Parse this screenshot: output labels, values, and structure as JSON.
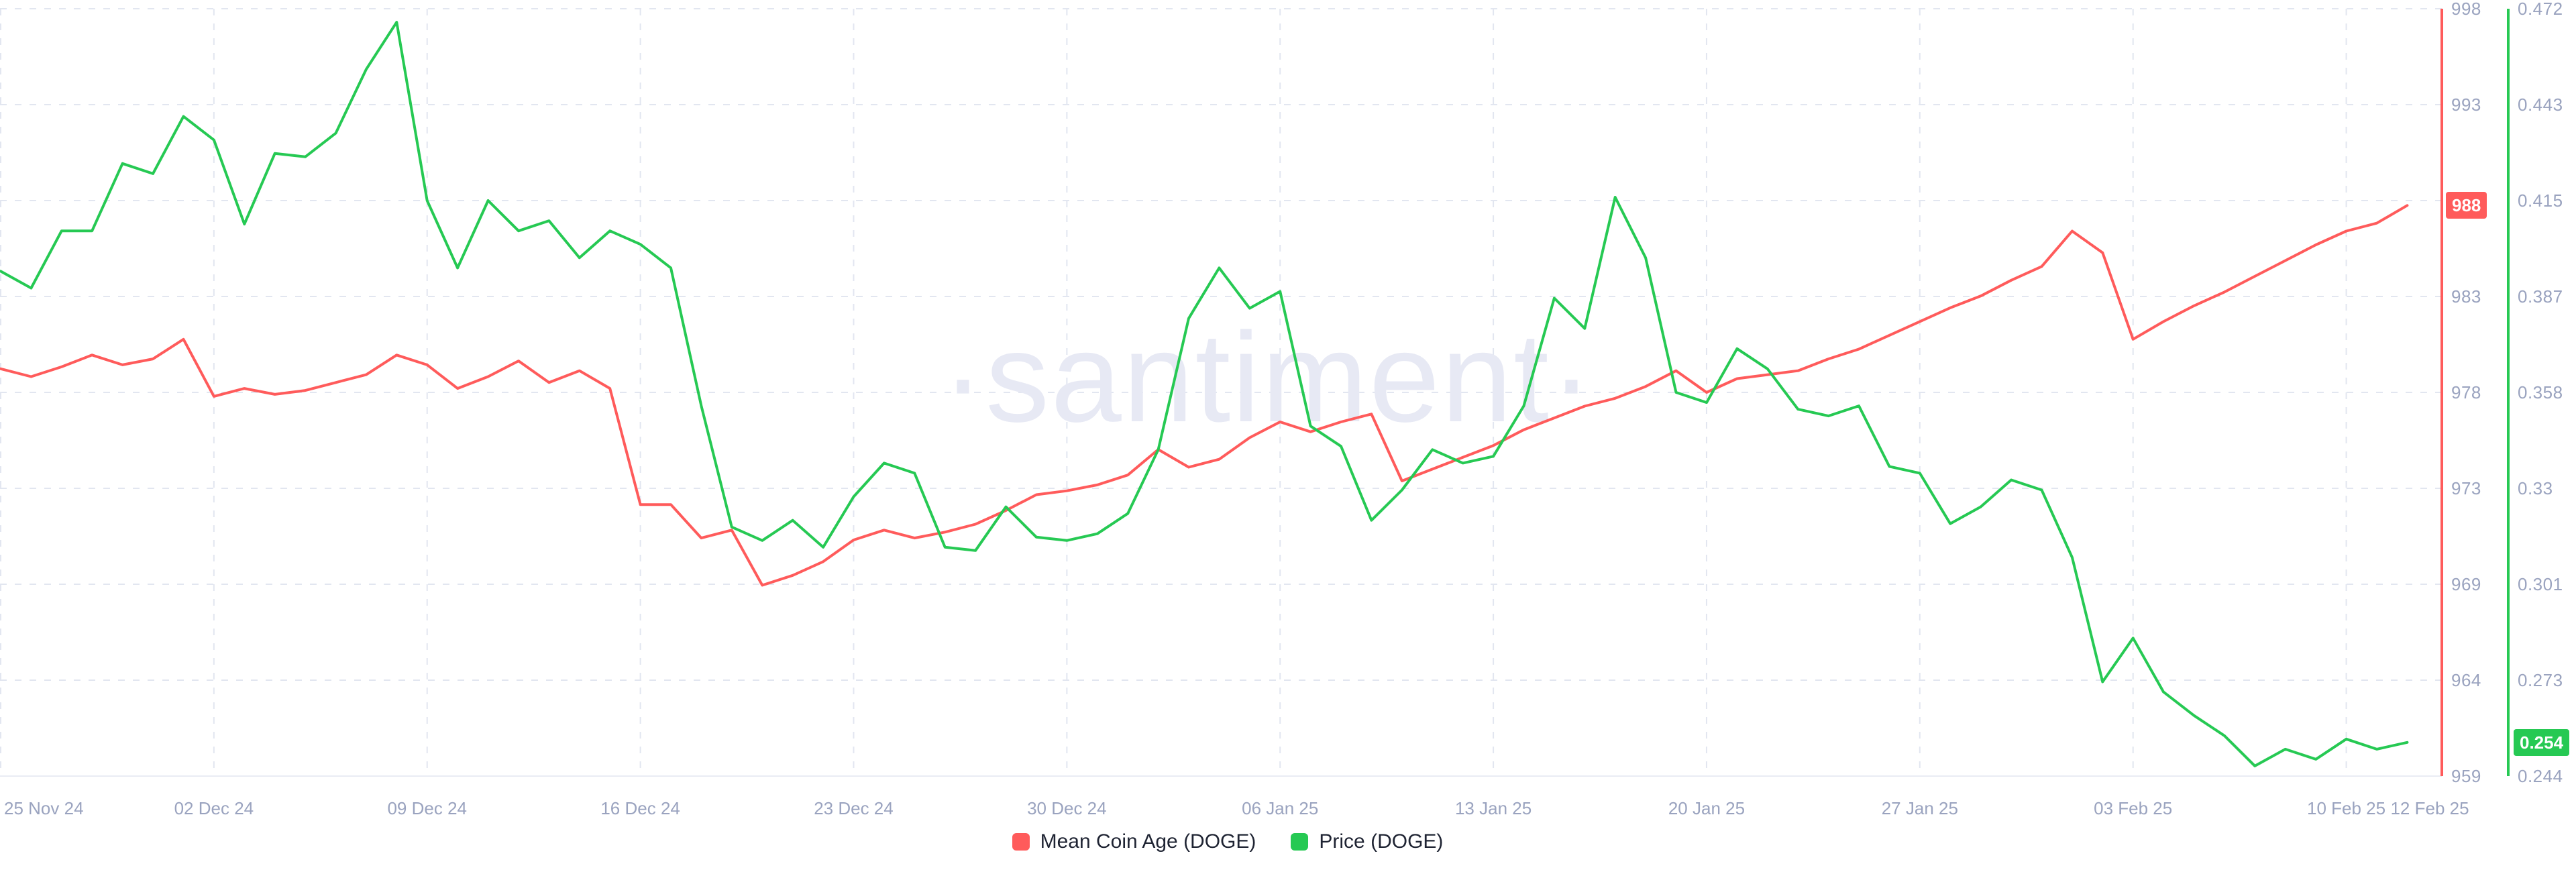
{
  "watermark": "·santiment·",
  "colors": {
    "red_series": "#ff5b5b",
    "green_series": "#26c953",
    "grid": "#e2e6f0",
    "axis_bottom_line": "#e9ecf4",
    "axis_label": "#9aa3bf",
    "legend_text": "#1f2433",
    "watermark": "#e7e9f4",
    "badge_text": "#ffffff"
  },
  "badges": {
    "mean_coin_age": "988",
    "price": "0.254"
  },
  "legend": [
    {
      "label": "Mean Coin Age (DOGE)",
      "color": "#ff5b5b"
    },
    {
      "label": "Price (DOGE)",
      "color": "#26c953"
    }
  ],
  "chart_data": {
    "type": "line",
    "title": "",
    "xlabel": "",
    "ylabel_right_inner": "Mean Coin Age (DOGE)",
    "ylabel_right_outer": "Price (DOGE)",
    "grid": true,
    "legend_position": "bottom-center",
    "x_unit": "day",
    "n_points": 80,
    "x_start_date": "25 Nov 24",
    "x_end_date": "12 Feb 25",
    "x_tick_labels": [
      "25 Nov 24",
      "02 Dec 24",
      "09 Dec 24",
      "16 Dec 24",
      "23 Dec 24",
      "30 Dec 24",
      "06 Jan 25",
      "13 Jan 25",
      "20 Jan 25",
      "27 Jan 25",
      "03 Feb 25",
      "10 Feb 25",
      "12 Feb 25"
    ],
    "x_tick_day_index": [
      0,
      7,
      14,
      21,
      28,
      35,
      42,
      49,
      56,
      63,
      70,
      77,
      79
    ],
    "right_axis_red": {
      "tick_labels": [
        "998",
        "993",
        "988",
        "983",
        "978",
        "973",
        "969",
        "964",
        "959"
      ],
      "min": 959,
      "max": 998,
      "current_value": "988"
    },
    "right_axis_green": {
      "tick_labels": [
        "0.472",
        "0.443",
        "0.415",
        "0.387",
        "0.358",
        "0.33",
        "0.301",
        "0.273",
        "0.244"
      ],
      "min": 0.244,
      "max": 0.472,
      "current_value": "0.254"
    },
    "series": [
      {
        "name": "Mean Coin Age (DOGE)",
        "axis": "red",
        "color": "#ff5b5b",
        "values": [
          979.7,
          979.3,
          979.8,
          980.4,
          979.9,
          980.2,
          981.2,
          978.3,
          978.7,
          978.4,
          978.6,
          979.0,
          979.4,
          980.4,
          979.9,
          978.7,
          979.3,
          980.1,
          979.0,
          979.6,
          978.7,
          972.8,
          972.8,
          971.1,
          971.5,
          968.7,
          969.2,
          969.9,
          971.0,
          971.5,
          971.1,
          971.4,
          971.8,
          972.5,
          973.3,
          973.5,
          973.8,
          974.3,
          975.6,
          974.7,
          975.1,
          976.2,
          977.0,
          976.5,
          977.0,
          977.4,
          974.0,
          974.6,
          975.2,
          975.8,
          976.6,
          977.2,
          977.8,
          978.2,
          978.8,
          979.6,
          978.5,
          979.2,
          979.4,
          979.6,
          980.2,
          980.7,
          981.4,
          982.1,
          982.8,
          983.4,
          984.2,
          984.9,
          986.7,
          985.6,
          981.2,
          982.1,
          982.9,
          983.6,
          984.4,
          985.2,
          986.0,
          986.7,
          987.1,
          988.0
        ]
      },
      {
        "name": "Price (DOGE)",
        "axis": "green",
        "color": "#26c953",
        "values": [
          0.394,
          0.389,
          0.406,
          0.406,
          0.426,
          0.423,
          0.44,
          0.433,
          0.408,
          0.429,
          0.428,
          0.435,
          0.454,
          0.468,
          0.415,
          0.395,
          0.415,
          0.406,
          0.409,
          0.398,
          0.406,
          0.402,
          0.395,
          0.354,
          0.318,
          0.314,
          0.32,
          0.312,
          0.327,
          0.337,
          0.334,
          0.312,
          0.311,
          0.324,
          0.315,
          0.314,
          0.316,
          0.322,
          0.341,
          0.38,
          0.395,
          0.383,
          0.388,
          0.348,
          0.342,
          0.32,
          0.329,
          0.341,
          0.337,
          0.339,
          0.354,
          0.386,
          0.377,
          0.416,
          0.398,
          0.358,
          0.355,
          0.371,
          0.365,
          0.353,
          0.351,
          0.354,
          0.336,
          0.334,
          0.319,
          0.324,
          0.332,
          0.329,
          0.309,
          0.272,
          0.285,
          0.269,
          0.262,
          0.256,
          0.247,
          0.252,
          0.249,
          0.255,
          0.252,
          0.254
        ]
      }
    ]
  }
}
